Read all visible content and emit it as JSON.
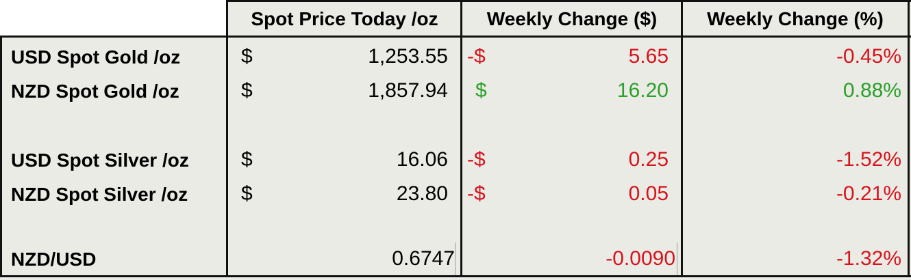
{
  "headers": {
    "spot_price": "Spot Price Today /oz",
    "weekly_change_dollar": "Weekly Change ($)",
    "weekly_change_percent": "Weekly Change (%)"
  },
  "rows": [
    {
      "label": "USD Spot Gold /oz",
      "currency": "$",
      "price": "1,253.55",
      "change_sign": "-$",
      "change": "5.65",
      "percent": "-0.45%"
    },
    {
      "label": "NZD Spot Gold /oz",
      "currency": "$",
      "price": "1,857.94",
      "change_sign": "$",
      "change": "16.20",
      "percent": "0.88%"
    },
    {
      "label": "USD Spot Silver /oz",
      "currency": "$",
      "price": "16.06",
      "change_sign": "-$",
      "change": "0.25",
      "percent": "-1.52%"
    },
    {
      "label": "NZD Spot Silver /oz",
      "currency": "$",
      "price": "23.80",
      "change_sign": "-$",
      "change": "0.05",
      "percent": "-0.21%"
    },
    {
      "label": "NZD/USD",
      "currency": "",
      "price": "0.6747",
      "change_sign": "",
      "change": "-0.0090",
      "percent": "-1.32%"
    }
  ],
  "colors": {
    "negative": "#d6141c",
    "positive": "#2aa02a",
    "background": "#ebebe6",
    "border": "#111111"
  }
}
